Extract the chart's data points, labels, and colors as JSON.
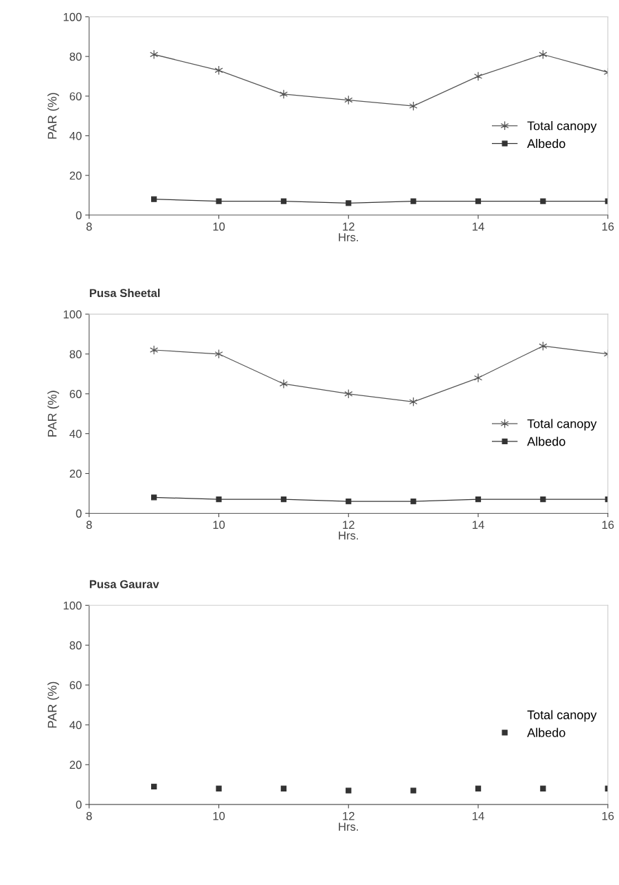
{
  "chart_data": [
    {
      "type": "line",
      "xlabel": "Hrs.",
      "ylabel": "PAR (%)",
      "x": [
        9,
        10,
        11,
        12,
        13,
        14,
        15,
        16
      ],
      "xlim": [
        8,
        16
      ],
      "xticks": [
        8,
        10,
        12,
        14,
        16
      ],
      "ylim": [
        0,
        100
      ],
      "yticks": [
        0,
        20,
        40,
        60,
        80,
        100
      ],
      "grid": false,
      "legend": "right",
      "series": [
        {
          "name": "Total canopy",
          "color": "#555555",
          "marker": "cross",
          "values": [
            81,
            73,
            61,
            58,
            55,
            70,
            81,
            72
          ]
        },
        {
          "name": "Albedo",
          "color": "#333333",
          "marker": "square",
          "values": [
            8,
            7,
            7,
            6,
            7,
            7,
            7,
            7
          ]
        }
      ]
    },
    {
      "type": "line",
      "title": "Pusa Sheetal",
      "xlabel": "Hrs.",
      "ylabel": "PAR (%)",
      "x": [
        9,
        10,
        11,
        12,
        13,
        14,
        15,
        16
      ],
      "xlim": [
        8,
        16
      ],
      "xticks": [
        8,
        10,
        12,
        14,
        16
      ],
      "ylim": [
        0,
        100
      ],
      "yticks": [
        0,
        20,
        40,
        60,
        80,
        100
      ],
      "grid": false,
      "legend": "right",
      "series": [
        {
          "name": "Total canopy",
          "color": "#555555",
          "marker": "cross",
          "values": [
            82,
            80,
            65,
            60,
            56,
            68,
            84,
            80
          ]
        },
        {
          "name": "Albedo",
          "color": "#333333",
          "marker": "square",
          "values": [
            8,
            7,
            7,
            6,
            6,
            7,
            7,
            7
          ]
        }
      ]
    },
    {
      "type": "scatter",
      "title": "Pusa Gaurav",
      "xlabel": "Hrs.",
      "ylabel": "PAR (%)",
      "x": [
        9,
        10,
        11,
        12,
        13,
        14,
        15,
        16
      ],
      "xlim": [
        8,
        16
      ],
      "xticks": [
        8,
        10,
        12,
        14,
        16
      ],
      "ylim": [
        0,
        100
      ],
      "yticks": [
        0,
        20,
        40,
        60,
        80,
        100
      ],
      "grid": false,
      "legend": "right",
      "series": [
        {
          "name": "Total canopy",
          "marker": "none",
          "values": [
            null,
            null,
            null,
            null,
            null,
            null,
            null,
            null
          ]
        },
        {
          "name": "Albedo",
          "color": "#333333",
          "marker": "square",
          "values": [
            9,
            8,
            8,
            7,
            7,
            8,
            8,
            8
          ]
        }
      ]
    }
  ]
}
